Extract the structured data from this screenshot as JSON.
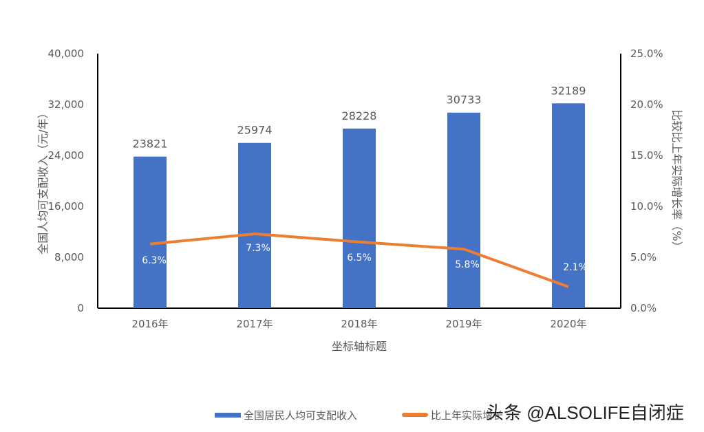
{
  "chart_data": {
    "type": "bar+line",
    "categories": [
      "2016年",
      "2017年",
      "2018年",
      "2019年",
      "2020年"
    ],
    "series": [
      {
        "name": "全国居民人均可支配收入",
        "type": "bar",
        "axis": "left",
        "color": "#4472C4",
        "values": [
          23821,
          25974,
          28228,
          30733,
          32189
        ],
        "data_labels": [
          "23821",
          "25974",
          "28228",
          "30733",
          "32189"
        ]
      },
      {
        "name": "比上年实际增长",
        "type": "line",
        "axis": "right",
        "color": "#ED7D31",
        "values": [
          6.3,
          7.3,
          6.5,
          5.8,
          2.1
        ],
        "data_labels": [
          "6.3%",
          "7.3%",
          "6.5%",
          "5.8%",
          "2.1%"
        ]
      }
    ],
    "xlabel": "坐标轴标题",
    "ylabel": "全国人均可支配收入（元/年）",
    "y2label": "比较比上年实际增长率（%）",
    "ylim": [
      0,
      40000
    ],
    "y2lim": [
      0,
      25
    ],
    "yticks": [
      "0",
      "8,000",
      "16,000",
      "24,000",
      "32,000",
      "40,000"
    ],
    "y2ticks": [
      "0.0%",
      "5.0%",
      "10.0%",
      "15.0%",
      "20.0%",
      "25.0%"
    ],
    "grid": false,
    "legend": "bottom"
  },
  "watermark": "头条 @ALSOLIFE自闭症"
}
